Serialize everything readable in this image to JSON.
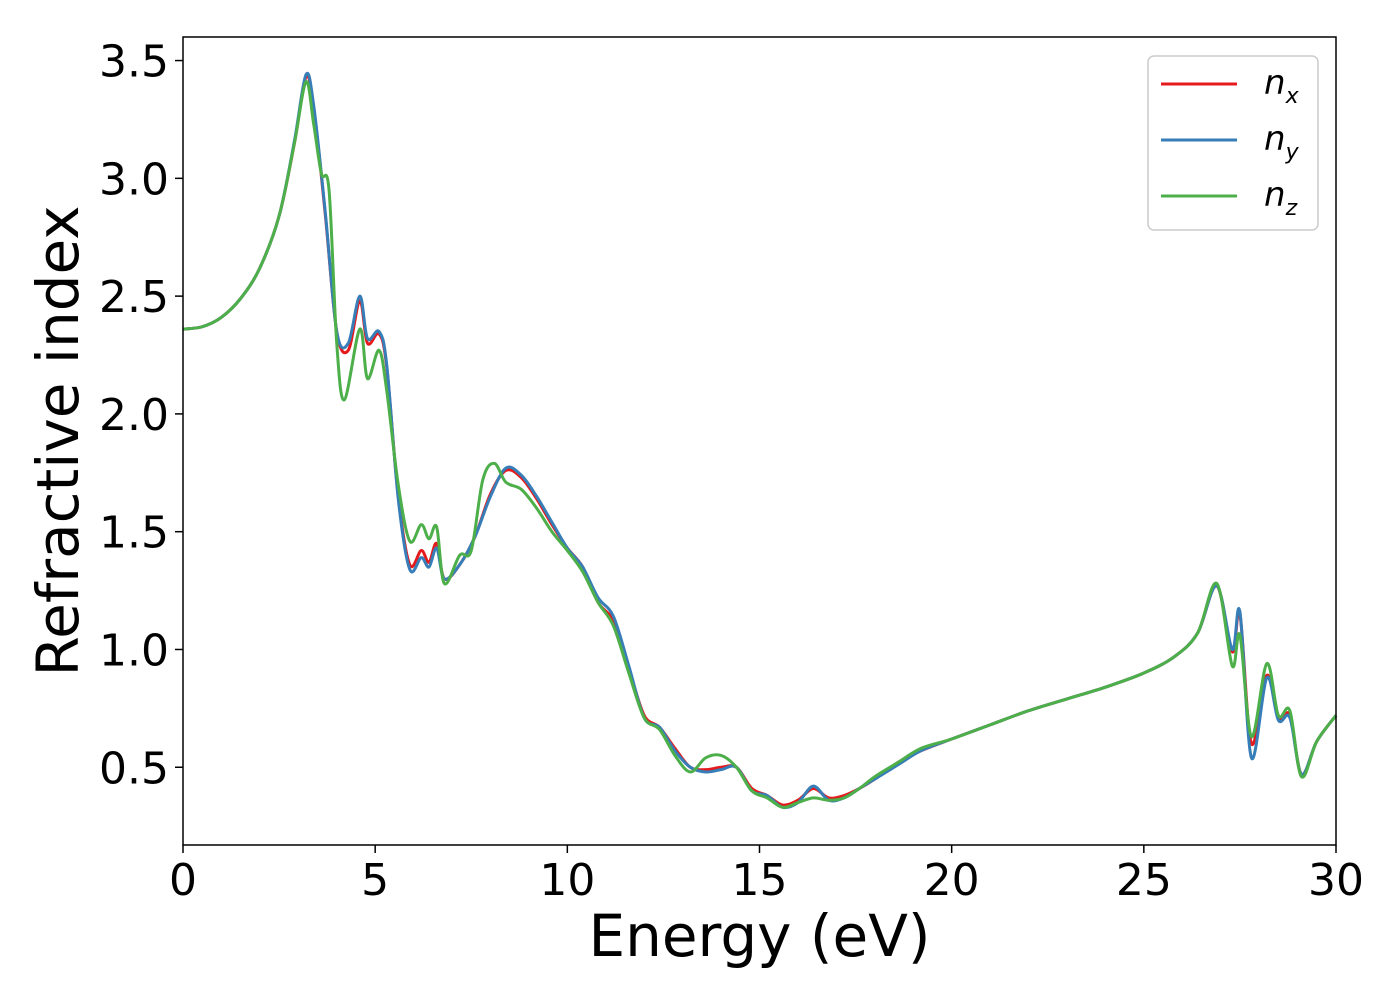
{
  "chart_data": {
    "type": "line",
    "xlabel": "Energy (eV)",
    "ylabel": "Refractive index",
    "xlim": [
      0,
      30
    ],
    "ylim": [
      0.17,
      3.6
    ],
    "x_ticks": [
      "0",
      "5",
      "10",
      "15",
      "20",
      "25",
      "30"
    ],
    "y_ticks": [
      "0.5",
      "1.0",
      "1.5",
      "2.0",
      "2.5",
      "3.0",
      "3.5"
    ],
    "grid": false,
    "legend_position": "top-right",
    "series": [
      {
        "name": "n_x",
        "label_base": "n",
        "label_sub": "x",
        "color": "#e41a1c",
        "points": [
          [
            0,
            2.36
          ],
          [
            0.5,
            2.37
          ],
          [
            1,
            2.41
          ],
          [
            1.5,
            2.49
          ],
          [
            2,
            2.62
          ],
          [
            2.5,
            2.84
          ],
          [
            2.9,
            3.15
          ],
          [
            3.2,
            3.43
          ],
          [
            3.4,
            3.3
          ],
          [
            3.7,
            2.85
          ],
          [
            4.0,
            2.35
          ],
          [
            4.3,
            2.27
          ],
          [
            4.6,
            2.48
          ],
          [
            4.8,
            2.3
          ],
          [
            5.1,
            2.34
          ],
          [
            5.3,
            2.2
          ],
          [
            5.6,
            1.65
          ],
          [
            5.9,
            1.36
          ],
          [
            6.2,
            1.42
          ],
          [
            6.4,
            1.37
          ],
          [
            6.6,
            1.45
          ],
          [
            6.8,
            1.3
          ],
          [
            7.2,
            1.36
          ],
          [
            7.6,
            1.48
          ],
          [
            8.0,
            1.66
          ],
          [
            8.4,
            1.76
          ],
          [
            8.8,
            1.73
          ],
          [
            9.2,
            1.64
          ],
          [
            9.6,
            1.53
          ],
          [
            10.0,
            1.43
          ],
          [
            10.4,
            1.35
          ],
          [
            10.8,
            1.2
          ],
          [
            11.2,
            1.12
          ],
          [
            11.6,
            0.92
          ],
          [
            12.0,
            0.72
          ],
          [
            12.4,
            0.67
          ],
          [
            12.8,
            0.58
          ],
          [
            13.2,
            0.5
          ],
          [
            13.6,
            0.49
          ],
          [
            14.0,
            0.5
          ],
          [
            14.4,
            0.5
          ],
          [
            14.8,
            0.41
          ],
          [
            15.2,
            0.38
          ],
          [
            15.6,
            0.34
          ],
          [
            16.0,
            0.36
          ],
          [
            16.4,
            0.41
          ],
          [
            16.8,
            0.37
          ],
          [
            17.2,
            0.38
          ],
          [
            17.6,
            0.41
          ],
          [
            18.0,
            0.45
          ],
          [
            18.6,
            0.52
          ],
          [
            19.2,
            0.57
          ],
          [
            20.0,
            0.62
          ],
          [
            21.0,
            0.68
          ],
          [
            22.0,
            0.74
          ],
          [
            23.0,
            0.79
          ],
          [
            24.0,
            0.84
          ],
          [
            25.0,
            0.9
          ],
          [
            25.8,
            0.97
          ],
          [
            26.4,
            1.07
          ],
          [
            26.9,
            1.27
          ],
          [
            27.3,
            0.99
          ],
          [
            27.5,
            1.15
          ],
          [
            27.8,
            0.6
          ],
          [
            28.2,
            0.89
          ],
          [
            28.5,
            0.71
          ],
          [
            28.8,
            0.72
          ],
          [
            29.1,
            0.47
          ],
          [
            29.5,
            0.61
          ],
          [
            30.0,
            0.72
          ]
        ]
      },
      {
        "name": "n_y",
        "label_base": "n",
        "label_sub": "y",
        "color": "#377eb8",
        "points": [
          [
            0,
            2.36
          ],
          [
            0.5,
            2.37
          ],
          [
            1,
            2.41
          ],
          [
            1.5,
            2.49
          ],
          [
            2,
            2.62
          ],
          [
            2.5,
            2.84
          ],
          [
            2.9,
            3.16
          ],
          [
            3.2,
            3.44
          ],
          [
            3.4,
            3.31
          ],
          [
            3.7,
            2.86
          ],
          [
            4.0,
            2.35
          ],
          [
            4.3,
            2.3
          ],
          [
            4.6,
            2.5
          ],
          [
            4.8,
            2.32
          ],
          [
            5.1,
            2.35
          ],
          [
            5.3,
            2.21
          ],
          [
            5.6,
            1.64
          ],
          [
            5.9,
            1.34
          ],
          [
            6.2,
            1.39
          ],
          [
            6.4,
            1.35
          ],
          [
            6.6,
            1.43
          ],
          [
            6.8,
            1.3
          ],
          [
            7.2,
            1.36
          ],
          [
            7.6,
            1.48
          ],
          [
            8.0,
            1.65
          ],
          [
            8.4,
            1.77
          ],
          [
            8.8,
            1.74
          ],
          [
            9.2,
            1.65
          ],
          [
            9.6,
            1.54
          ],
          [
            10.0,
            1.43
          ],
          [
            10.4,
            1.35
          ],
          [
            10.8,
            1.22
          ],
          [
            11.2,
            1.14
          ],
          [
            11.6,
            0.93
          ],
          [
            12.0,
            0.71
          ],
          [
            12.4,
            0.67
          ],
          [
            12.8,
            0.57
          ],
          [
            13.2,
            0.5
          ],
          [
            13.6,
            0.48
          ],
          [
            14.0,
            0.49
          ],
          [
            14.4,
            0.5
          ],
          [
            14.8,
            0.4
          ],
          [
            15.2,
            0.38
          ],
          [
            15.6,
            0.33
          ],
          [
            16.0,
            0.35
          ],
          [
            16.4,
            0.42
          ],
          [
            16.8,
            0.36
          ],
          [
            17.2,
            0.37
          ],
          [
            17.6,
            0.41
          ],
          [
            18.0,
            0.45
          ],
          [
            18.6,
            0.51
          ],
          [
            19.2,
            0.57
          ],
          [
            20.0,
            0.62
          ],
          [
            21.0,
            0.68
          ],
          [
            22.0,
            0.74
          ],
          [
            23.0,
            0.79
          ],
          [
            24.0,
            0.84
          ],
          [
            25.0,
            0.9
          ],
          [
            25.8,
            0.97
          ],
          [
            26.4,
            1.07
          ],
          [
            26.9,
            1.27
          ],
          [
            27.3,
            1.0
          ],
          [
            27.5,
            1.16
          ],
          [
            27.8,
            0.54
          ],
          [
            28.2,
            0.88
          ],
          [
            28.5,
            0.7
          ],
          [
            28.8,
            0.71
          ],
          [
            29.1,
            0.47
          ],
          [
            29.5,
            0.61
          ],
          [
            30.0,
            0.72
          ]
        ]
      },
      {
        "name": "n_z",
        "label_base": "n",
        "label_sub": "z",
        "color": "#4daf4a",
        "points": [
          [
            0,
            2.36
          ],
          [
            0.5,
            2.37
          ],
          [
            1,
            2.41
          ],
          [
            1.5,
            2.49
          ],
          [
            2,
            2.62
          ],
          [
            2.5,
            2.84
          ],
          [
            2.9,
            3.15
          ],
          [
            3.2,
            3.41
          ],
          [
            3.4,
            3.23
          ],
          [
            3.6,
            3.02
          ],
          [
            3.8,
            2.95
          ],
          [
            4.0,
            2.3
          ],
          [
            4.2,
            2.06
          ],
          [
            4.6,
            2.36
          ],
          [
            4.8,
            2.15
          ],
          [
            5.1,
            2.27
          ],
          [
            5.3,
            2.1
          ],
          [
            5.6,
            1.7
          ],
          [
            5.9,
            1.46
          ],
          [
            6.2,
            1.53
          ],
          [
            6.4,
            1.47
          ],
          [
            6.6,
            1.52
          ],
          [
            6.8,
            1.28
          ],
          [
            7.2,
            1.4
          ],
          [
            7.5,
            1.42
          ],
          [
            7.8,
            1.72
          ],
          [
            8.1,
            1.79
          ],
          [
            8.4,
            1.71
          ],
          [
            8.8,
            1.68
          ],
          [
            9.2,
            1.6
          ],
          [
            9.6,
            1.5
          ],
          [
            10.0,
            1.42
          ],
          [
            10.4,
            1.33
          ],
          [
            10.8,
            1.2
          ],
          [
            11.2,
            1.1
          ],
          [
            11.6,
            0.9
          ],
          [
            12.0,
            0.71
          ],
          [
            12.4,
            0.66
          ],
          [
            12.8,
            0.55
          ],
          [
            13.2,
            0.48
          ],
          [
            13.6,
            0.54
          ],
          [
            14.0,
            0.55
          ],
          [
            14.4,
            0.5
          ],
          [
            14.8,
            0.4
          ],
          [
            15.2,
            0.37
          ],
          [
            15.6,
            0.33
          ],
          [
            16.0,
            0.35
          ],
          [
            16.4,
            0.37
          ],
          [
            16.8,
            0.36
          ],
          [
            17.2,
            0.37
          ],
          [
            17.6,
            0.41
          ],
          [
            18.0,
            0.46
          ],
          [
            18.6,
            0.52
          ],
          [
            19.2,
            0.58
          ],
          [
            20.0,
            0.62
          ],
          [
            21.0,
            0.68
          ],
          [
            22.0,
            0.74
          ],
          [
            23.0,
            0.79
          ],
          [
            24.0,
            0.84
          ],
          [
            25.0,
            0.9
          ],
          [
            25.8,
            0.97
          ],
          [
            26.4,
            1.07
          ],
          [
            26.9,
            1.28
          ],
          [
            27.3,
            0.93
          ],
          [
            27.5,
            1.06
          ],
          [
            27.8,
            0.63
          ],
          [
            28.2,
            0.94
          ],
          [
            28.5,
            0.72
          ],
          [
            28.8,
            0.74
          ],
          [
            29.1,
            0.46
          ],
          [
            29.5,
            0.61
          ],
          [
            30.0,
            0.72
          ]
        ]
      }
    ]
  }
}
